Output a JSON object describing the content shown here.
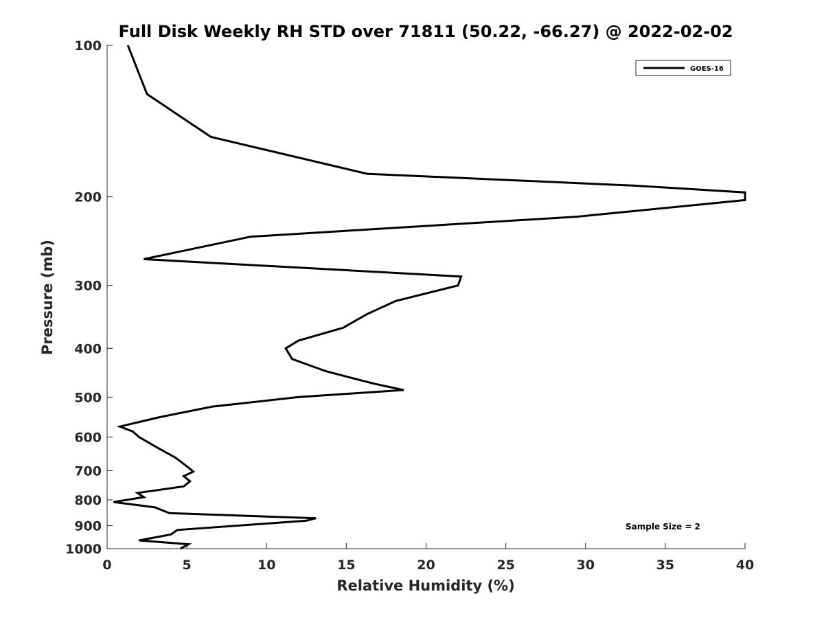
{
  "chart_data": {
    "type": "line",
    "title": "Full Disk Weekly RH STD over 71811 (50.22, -66.27) @ 2022-02-02",
    "xlabel": "Relative Humidity (%)",
    "ylabel": "Pressure (mb)",
    "xlim": [
      0,
      40
    ],
    "ylim": [
      100,
      1000
    ],
    "y_scale": "log",
    "y_reversed": true,
    "x_ticks": [
      0,
      5,
      10,
      15,
      20,
      25,
      30,
      35,
      40
    ],
    "x_tick_labels": [
      "0",
      "5",
      "10",
      "15",
      "20",
      "25",
      "30",
      "35",
      "40"
    ],
    "y_ticks": [
      100,
      200,
      300,
      400,
      500,
      600,
      700,
      800,
      900,
      1000
    ],
    "y_tick_labels": [
      "100",
      "200",
      "300",
      "400",
      "500",
      "600",
      "700",
      "800",
      "900",
      "1000"
    ],
    "grid": false,
    "legend_position": "top-right",
    "series": [
      {
        "name": "GOES-16",
        "color": "#000000",
        "points": [
          [
            1.3,
            100
          ],
          [
            2.5,
            125
          ],
          [
            6.5,
            152
          ],
          [
            16.3,
            180
          ],
          [
            33.0,
            190
          ],
          [
            40.0,
            196
          ],
          [
            40.0,
            203
          ],
          [
            29.5,
            219
          ],
          [
            9.0,
            240
          ],
          [
            2.3,
            266
          ],
          [
            22.2,
            288
          ],
          [
            22.0,
            300
          ],
          [
            18.1,
            322
          ],
          [
            16.3,
            342
          ],
          [
            14.8,
            364
          ],
          [
            12.0,
            386
          ],
          [
            11.2,
            400
          ],
          [
            11.6,
            420
          ],
          [
            13.7,
            444
          ],
          [
            16.7,
            470
          ],
          [
            18.6,
            484
          ],
          [
            12.0,
            500
          ],
          [
            6.6,
            522
          ],
          [
            3.3,
            548
          ],
          [
            0.8,
            572
          ],
          [
            1.6,
            585
          ],
          [
            2.0,
            600
          ],
          [
            3.0,
            626
          ],
          [
            4.3,
            660
          ],
          [
            5.1,
            690
          ],
          [
            5.4,
            703
          ],
          [
            4.8,
            718
          ],
          [
            5.2,
            735
          ],
          [
            4.8,
            752
          ],
          [
            1.9,
            775
          ],
          [
            2.3,
            790
          ],
          [
            0.4,
            808
          ],
          [
            3.0,
            828
          ],
          [
            3.9,
            850
          ],
          [
            13.1,
            870
          ],
          [
            12.5,
            880
          ],
          [
            4.4,
            918
          ],
          [
            4.0,
            937
          ],
          [
            2.0,
            963
          ],
          [
            5.1,
            980
          ],
          [
            4.6,
            1000
          ]
        ]
      }
    ],
    "annotation": "Sample Size = 2"
  }
}
